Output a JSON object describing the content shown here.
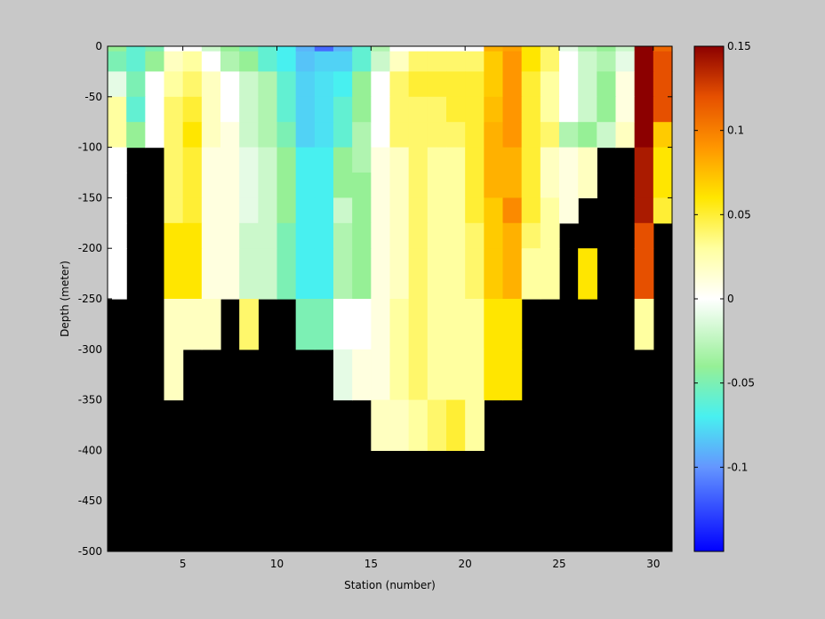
{
  "chart_data": {
    "type": "heatmap",
    "title": "",
    "xlabel": "Station (number)",
    "ylabel": "Depth (meter)",
    "xlim": [
      1,
      31
    ],
    "ylim": [
      -500,
      0
    ],
    "x_ticks": [
      5,
      10,
      15,
      20,
      25,
      30
    ],
    "y_ticks": [
      0,
      -50,
      -100,
      -150,
      -200,
      -250,
      -300,
      -350,
      -400,
      -450,
      -500
    ],
    "station_edges": [
      1,
      2,
      3,
      4,
      5,
      6,
      7,
      8,
      9,
      10,
      11,
      12,
      13,
      14,
      15,
      16,
      17,
      18,
      19,
      20,
      21,
      22,
      23,
      24,
      25,
      26,
      27,
      28,
      29,
      30,
      31
    ],
    "depth_edges": [
      0,
      -5,
      -25,
      -50,
      -75,
      -100,
      -125,
      -150,
      -175,
      -200,
      -250,
      -300,
      -350,
      -400
    ],
    "no_data_color": "#000000",
    "background_color": "#c8c8c8",
    "values": [
      [
        -0.04,
        -0.06,
        -0.05,
        0.0,
        0.0,
        -0.02,
        -0.04,
        -0.05,
        -0.06,
        -0.07,
        -0.09,
        -0.115,
        -0.09,
        -0.06,
        -0.03,
        0.0,
        0.0,
        0.0,
        0.0,
        0.0,
        0.08,
        0.085,
        0.06,
        0.04,
        -0.01,
        -0.03,
        -0.04,
        -0.02,
        0.15,
        0.11
      ],
      [
        -0.05,
        -0.06,
        -0.04,
        0.02,
        0.03,
        0.0,
        -0.03,
        -0.04,
        -0.06,
        -0.07,
        -0.085,
        -0.08,
        -0.08,
        -0.06,
        -0.02,
        0.02,
        0.04,
        0.04,
        0.04,
        0.04,
        0.07,
        0.09,
        0.06,
        0.04,
        0.0,
        -0.02,
        -0.03,
        -0.01,
        0.15,
        0.12
      ],
      [
        -0.01,
        -0.05,
        0.0,
        0.03,
        0.04,
        0.02,
        0.0,
        -0.02,
        -0.03,
        -0.06,
        -0.08,
        -0.075,
        -0.07,
        -0.04,
        0.0,
        0.04,
        0.05,
        0.05,
        0.05,
        0.05,
        0.07,
        0.09,
        0.05,
        0.03,
        0.0,
        -0.02,
        -0.04,
        0.01,
        0.15,
        0.12
      ],
      [
        0.03,
        -0.06,
        0.0,
        0.04,
        0.05,
        0.02,
        0.0,
        -0.02,
        -0.03,
        -0.06,
        -0.08,
        -0.075,
        -0.06,
        -0.04,
        0.0,
        0.04,
        0.04,
        0.04,
        0.05,
        0.05,
        0.075,
        0.09,
        0.05,
        0.03,
        0.0,
        -0.02,
        -0.04,
        0.01,
        0.15,
        0.12
      ],
      [
        0.03,
        -0.04,
        0.0,
        0.04,
        0.06,
        0.02,
        0.01,
        -0.02,
        -0.03,
        -0.05,
        -0.08,
        -0.075,
        -0.06,
        -0.03,
        0.0,
        0.04,
        0.04,
        0.04,
        0.04,
        0.05,
        0.08,
        0.09,
        0.05,
        0.04,
        -0.03,
        -0.04,
        -0.02,
        0.02,
        0.15,
        0.07
      ],
      [
        0.0,
        null,
        null,
        0.04,
        0.05,
        0.01,
        0.01,
        -0.01,
        -0.02,
        -0.04,
        -0.07,
        -0.07,
        -0.04,
        -0.03,
        0.01,
        0.02,
        0.04,
        0.03,
        0.03,
        0.05,
        0.08,
        0.08,
        0.05,
        0.02,
        0.01,
        0.02,
        null,
        null,
        0.14,
        0.06
      ],
      [
        0.0,
        null,
        null,
        0.04,
        0.05,
        0.01,
        0.01,
        -0.01,
        -0.02,
        -0.04,
        -0.07,
        -0.07,
        -0.04,
        -0.04,
        0.01,
        0.02,
        0.04,
        0.03,
        0.03,
        0.05,
        0.08,
        0.08,
        0.05,
        0.02,
        0.01,
        0.02,
        null,
        null,
        0.14,
        0.06
      ],
      [
        0.0,
        null,
        null,
        0.04,
        0.05,
        0.01,
        0.01,
        -0.01,
        -0.02,
        -0.04,
        -0.07,
        -0.07,
        -0.02,
        -0.04,
        0.01,
        0.02,
        0.04,
        0.03,
        0.03,
        0.05,
        0.07,
        0.095,
        0.05,
        0.03,
        0.01,
        null,
        null,
        null,
        0.14,
        0.05
      ],
      [
        0.0,
        null,
        null,
        0.06,
        0.06,
        0.01,
        0.01,
        -0.02,
        -0.02,
        -0.05,
        -0.07,
        -0.07,
        -0.03,
        -0.04,
        0.01,
        0.02,
        0.04,
        0.03,
        0.03,
        0.04,
        0.07,
        0.08,
        0.04,
        0.03,
        null,
        null,
        null,
        null,
        0.12,
        null
      ],
      [
        0.0,
        null,
        null,
        0.06,
        0.06,
        0.01,
        0.01,
        -0.02,
        -0.02,
        -0.05,
        -0.07,
        -0.07,
        -0.03,
        -0.04,
        0.01,
        0.02,
        0.04,
        0.03,
        0.03,
        0.04,
        0.07,
        0.08,
        0.03,
        0.03,
        null,
        0.06,
        null,
        null,
        0.12,
        null
      ],
      [
        null,
        null,
        null,
        0.02,
        0.02,
        0.02,
        null,
        0.04,
        null,
        null,
        -0.05,
        -0.05,
        0.0,
        0.0,
        0.01,
        0.03,
        0.04,
        0.03,
        0.03,
        0.03,
        0.06,
        0.06,
        null,
        null,
        null,
        null,
        null,
        null,
        0.03,
        null
      ],
      [
        null,
        null,
        null,
        0.02,
        null,
        null,
        null,
        null,
        null,
        null,
        null,
        null,
        -0.01,
        0.01,
        0.01,
        0.03,
        0.04,
        0.03,
        0.03,
        0.03,
        0.06,
        0.06,
        null,
        null,
        null,
        null,
        null,
        null,
        null,
        null
      ],
      [
        null,
        null,
        null,
        null,
        null,
        null,
        null,
        null,
        null,
        null,
        null,
        null,
        null,
        null,
        0.02,
        0.02,
        0.03,
        0.04,
        0.05,
        0.03,
        null,
        null,
        null,
        null,
        null,
        null,
        null,
        null,
        null,
        null
      ]
    ],
    "colorbar": {
      "clim": [
        -0.15,
        0.15
      ],
      "ticks": [
        0.15,
        0.1,
        0.05,
        0,
        -0.05,
        -0.1
      ],
      "tick_labels": [
        "0.15",
        "0.1",
        "0.05",
        "0",
        "-0.05",
        "-0.1"
      ],
      "colormap_stops": [
        {
          "v": -0.15,
          "c": "#0000ff"
        },
        {
          "v": -0.1,
          "c": "#6496ff"
        },
        {
          "v": -0.07,
          "c": "#48f0f0"
        },
        {
          "v": -0.04,
          "c": "#96f096"
        },
        {
          "v": 0.0,
          "c": "#ffffff"
        },
        {
          "v": 0.03,
          "c": "#ffffa0"
        },
        {
          "v": 0.06,
          "c": "#ffe600"
        },
        {
          "v": 0.09,
          "c": "#ff9600"
        },
        {
          "v": 0.12,
          "c": "#e65000"
        },
        {
          "v": 0.15,
          "c": "#8c0000"
        }
      ]
    },
    "grid": false,
    "legend": "none"
  }
}
